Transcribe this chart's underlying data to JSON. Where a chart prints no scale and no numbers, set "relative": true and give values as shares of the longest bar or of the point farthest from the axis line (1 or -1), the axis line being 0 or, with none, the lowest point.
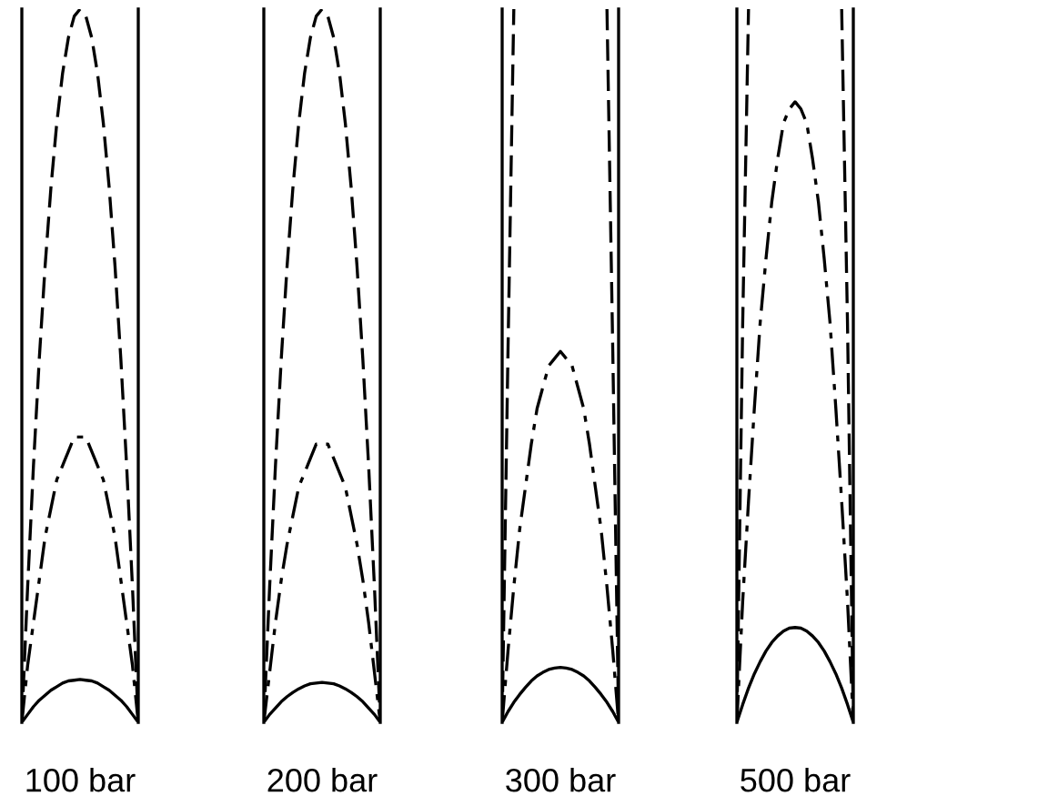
{
  "chart_data": [
    {
      "type": "line",
      "relative": true,
      "xlabel": "100 bar",
      "categories": [
        null,
        null,
        null,
        null,
        null,
        null,
        null,
        null,
        null,
        null,
        null,
        null,
        null,
        null,
        null,
        null,
        null,
        null,
        null,
        null,
        null
      ],
      "series": [
        {
          "color": "#000000",
          "line_style": "solid",
          "values": [
            0,
            0.011,
            0.022,
            0.031,
            0.038,
            0.045,
            0.05,
            0.055,
            0.058,
            0.059,
            0.06,
            0.059,
            0.058,
            0.055,
            0.05,
            0.045,
            0.038,
            0.031,
            0.022,
            0.011,
            0
          ]
        },
        {
          "color": "#000000",
          "line_style": "dashdot",
          "values": [
            0,
            0.08,
            0.14,
            0.2,
            0.26,
            0.3,
            0.34,
            0.36,
            0.38,
            0.4,
            0.4,
            0.4,
            0.38,
            0.36,
            0.34,
            0.3,
            0.26,
            0.2,
            0.14,
            0.08,
            0
          ]
        },
        {
          "color": "#000000",
          "line_style": "dashed",
          "values": [
            0,
            0.19,
            0.36,
            0.51,
            0.64,
            0.75,
            0.84,
            0.91,
            0.96,
            0.99,
            1,
            0.99,
            0.96,
            0.91,
            0.84,
            0.75,
            0.64,
            0.51,
            0.36,
            0.19,
            0
          ]
        }
      ]
    },
    {
      "type": "line",
      "relative": true,
      "xlabel": "200 bar",
      "categories": [
        null,
        null,
        null,
        null,
        null,
        null,
        null,
        null,
        null,
        null,
        null,
        null,
        null,
        null,
        null,
        null,
        null,
        null,
        null,
        null,
        null
      ],
      "series": [
        {
          "color": "#000000",
          "line_style": "solid",
          "values": [
            0,
            0.011,
            0.02,
            0.029,
            0.036,
            0.042,
            0.047,
            0.051,
            0.054,
            0.055,
            0.056,
            0.055,
            0.054,
            0.051,
            0.047,
            0.042,
            0.036,
            0.029,
            0.02,
            0.011,
            0
          ]
        },
        {
          "color": "#000000",
          "line_style": "dashdot",
          "values": [
            0,
            0.07,
            0.14,
            0.2,
            0.25,
            0.29,
            0.33,
            0.35,
            0.37,
            0.39,
            0.39,
            0.39,
            0.37,
            0.35,
            0.33,
            0.29,
            0.25,
            0.2,
            0.14,
            0.07,
            0
          ]
        },
        {
          "color": "#000000",
          "line_style": "dashed",
          "values": [
            0,
            0.19,
            0.36,
            0.51,
            0.64,
            0.75,
            0.84,
            0.91,
            0.96,
            0.99,
            1,
            0.99,
            0.96,
            0.91,
            0.84,
            0.75,
            0.64,
            0.51,
            0.36,
            0.19,
            0
          ]
        }
      ]
    },
    {
      "type": "line",
      "relative": true,
      "xlabel": "300 bar",
      "categories": [
        null,
        null,
        null,
        null,
        null,
        null,
        null,
        null,
        null,
        null,
        null,
        null,
        null,
        null,
        null,
        null,
        null,
        null,
        null,
        null,
        null
      ],
      "series": [
        {
          "color": "#000000",
          "line_style": "solid",
          "values": [
            0,
            0.015,
            0.028,
            0.039,
            0.049,
            0.058,
            0.065,
            0.07,
            0.074,
            0.076,
            0.077,
            0.076,
            0.074,
            0.07,
            0.065,
            0.058,
            0.049,
            0.039,
            0.028,
            0.015,
            0
          ]
        },
        {
          "color": "#000000",
          "line_style": "dashdot",
          "values": [
            0,
            0.1,
            0.19,
            0.27,
            0.33,
            0.39,
            0.44,
            0.47,
            0.5,
            0.51,
            0.52,
            0.51,
            0.5,
            0.47,
            0.44,
            0.39,
            0.33,
            0.27,
            0.19,
            0.1,
            0
          ]
        },
        {
          "color": "#000000",
          "line_style": "dashed",
          "values": [
            0,
            0.52,
            1,
            null,
            null,
            null,
            null,
            null,
            null,
            null,
            null,
            null,
            null,
            null,
            null,
            null,
            null,
            null,
            1,
            0.52,
            0
          ]
        }
      ]
    },
    {
      "type": "line",
      "relative": true,
      "xlabel": "500 bar",
      "categories": [
        null,
        null,
        null,
        null,
        null,
        null,
        null,
        null,
        null,
        null,
        null,
        null,
        null,
        null,
        null,
        null,
        null,
        null,
        null,
        null,
        null
      ],
      "series": [
        {
          "color": "#000000",
          "line_style": "solid",
          "values": [
            0,
            0.025,
            0.048,
            0.068,
            0.085,
            0.1,
            0.112,
            0.121,
            0.128,
            0.132,
            0.133,
            0.132,
            0.128,
            0.121,
            0.112,
            0.1,
            0.085,
            0.068,
            0.048,
            0.025,
            0
          ]
        },
        {
          "color": "#000000",
          "line_style": "dashdot",
          "values": [
            0,
            0.17,
            0.31,
            0.44,
            0.56,
            0.65,
            0.73,
            0.79,
            0.84,
            0.86,
            0.87,
            0.86,
            0.84,
            0.79,
            0.73,
            0.65,
            0.56,
            0.44,
            0.31,
            0.17,
            0
          ]
        },
        {
          "color": "#000000",
          "line_style": "dashed",
          "values": [
            0,
            0.56,
            1,
            null,
            null,
            null,
            null,
            null,
            null,
            null,
            null,
            null,
            null,
            null,
            null,
            null,
            null,
            null,
            1,
            0.56,
            0
          ]
        }
      ]
    }
  ]
}
